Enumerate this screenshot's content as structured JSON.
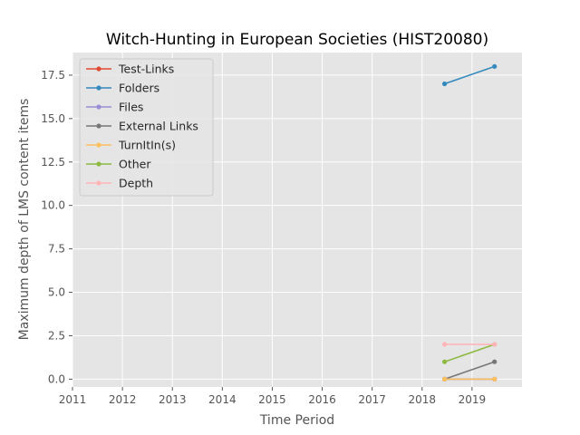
{
  "chart_data": {
    "type": "line",
    "title": "Witch-Hunting in European Societies (HIST20080)",
    "xlabel": "Time Period",
    "ylabel": "Maximum depth of LMS content items",
    "xlim": [
      2011,
      2020
    ],
    "ylim": [
      -0.45,
      18.8
    ],
    "x_ticks": [
      2011,
      2012,
      2013,
      2014,
      2015,
      2016,
      2017,
      2018,
      2019
    ],
    "x_tick_labels": [
      "2011",
      "2012",
      "2013",
      "2014",
      "2015",
      "2016",
      "2017",
      "2018",
      "2019"
    ],
    "y_ticks": [
      0,
      2.5,
      5,
      7.5,
      10,
      12.5,
      15,
      17.5
    ],
    "y_tick_labels": [
      "0.0",
      "2.5",
      "5.0",
      "7.5",
      "10.0",
      "12.5",
      "15.0",
      "17.5"
    ],
    "grid": true,
    "legend_position": "top-left",
    "background": "#e5e5e5",
    "x": [
      2018.45,
      2019.45
    ],
    "series": [
      {
        "name": "Test-Links",
        "color": "#e24a33",
        "values": [
          0,
          0
        ]
      },
      {
        "name": "Folders",
        "color": "#348abd",
        "values": [
          17,
          18
        ]
      },
      {
        "name": "Files",
        "color": "#988ed5",
        "values": [
          0,
          0
        ]
      },
      {
        "name": "External Links",
        "color": "#777777",
        "values": [
          0,
          1
        ]
      },
      {
        "name": "TurnItIn(s)",
        "color": "#fbc15e",
        "values": [
          0,
          0
        ]
      },
      {
        "name": "Other",
        "color": "#8eba42",
        "values": [
          1,
          2
        ]
      },
      {
        "name": "Depth",
        "color": "#ffb5b8",
        "values": [
          2,
          2
        ]
      }
    ]
  }
}
